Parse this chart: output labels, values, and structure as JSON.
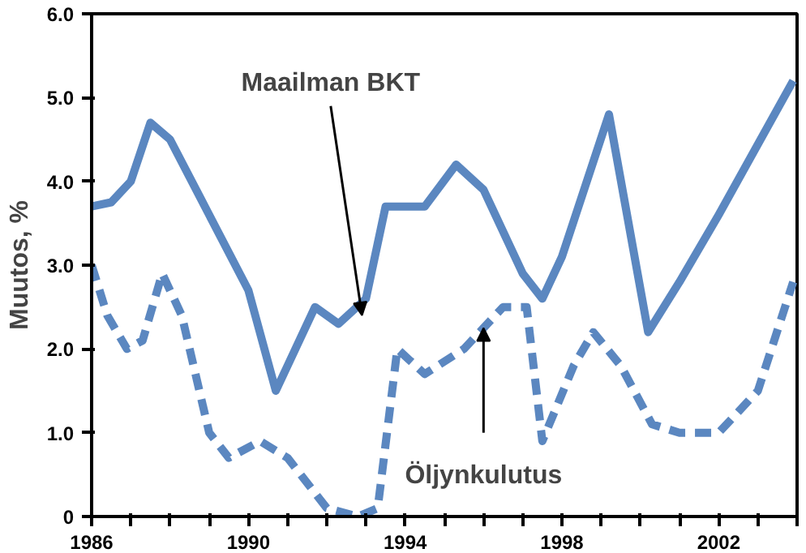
{
  "chart_data": {
    "type": "line",
    "ylabel": "Muutos, %",
    "xlim": [
      1986,
      2004
    ],
    "ylim": [
      0,
      6
    ],
    "xticks": [
      1986,
      {
        "value": 1987,
        "label": null
      },
      {
        "value": 1988,
        "label": null
      },
      {
        "value": 1989,
        "label": null
      },
      1990,
      {
        "value": 1991,
        "label": null
      },
      {
        "value": 1992,
        "label": null
      },
      {
        "value": 1993,
        "label": null
      },
      1994,
      {
        "value": 1995,
        "label": null
      },
      {
        "value": 1996,
        "label": null
      },
      {
        "value": 1997,
        "label": null
      },
      1998,
      {
        "value": 1999,
        "label": null
      },
      {
        "value": 2000,
        "label": null
      },
      {
        "value": 2001,
        "label": null
      },
      2002,
      {
        "value": 2003,
        "label": null
      },
      {
        "value": 2004,
        "label": null
      }
    ],
    "yticks": [
      0,
      {
        "value": 1,
        "label": "1.0"
      },
      {
        "value": 2,
        "label": "2.0"
      },
      {
        "value": 3,
        "label": "3.0"
      },
      {
        "value": 4,
        "label": "4.0"
      },
      {
        "value": 5,
        "label": "5.0"
      },
      {
        "value": 6,
        "label": "6.0"
      }
    ],
    "grid": false,
    "series": [
      {
        "color": "#5b87c0",
        "line_style": "solid",
        "x": [
          1986,
          1986.5,
          1987,
          1987.5,
          1988,
          1989,
          1990,
          1990.7,
          1991.7,
          1992.3,
          1993,
          1993.5,
          1994.5,
          1995.3,
          1996,
          1997,
          1997.5,
          1998,
          1999.2,
          2000.2,
          2001,
          2002,
          2003.9
        ],
        "values": [
          3.7,
          3.75,
          4.0,
          4.7,
          4.5,
          3.6,
          2.7,
          1.5,
          2.5,
          2.3,
          2.6,
          3.7,
          3.7,
          4.2,
          3.9,
          2.9,
          2.6,
          3.1,
          4.8,
          2.2,
          2.8,
          3.6,
          5.2
        ]
      },
      {
        "color": "#5b87c0",
        "line_style": "dashed",
        "x": [
          1986,
          1986.4,
          1986.9,
          1987.3,
          1987.8,
          1988.3,
          1989,
          1989.5,
          1990.3,
          1991,
          1992,
          1992.8,
          1993.3,
          1993.8,
          1994.5,
          1995.5,
          1996,
          1996.5,
          1997.1,
          1997.5,
          1998.3,
          1998.8,
          1999.5,
          2000.3,
          2001,
          2002,
          2003,
          2003.9
        ],
        "values": [
          3.0,
          2.4,
          2.0,
          2.1,
          2.9,
          2.4,
          1.0,
          0.7,
          0.9,
          0.7,
          0.1,
          0.0,
          0.1,
          2.0,
          1.7,
          2.0,
          2.25,
          2.5,
          2.5,
          0.9,
          1.8,
          2.2,
          1.8,
          1.1,
          1.0,
          1.0,
          1.5,
          2.8
        ]
      }
    ],
    "annotations": [
      {
        "text": "Maailman BKT",
        "x": 1992.9,
        "y": 2.4
      },
      {
        "text": "Öljynkulutus",
        "x": 1996,
        "y": 2.25
      }
    ]
  }
}
